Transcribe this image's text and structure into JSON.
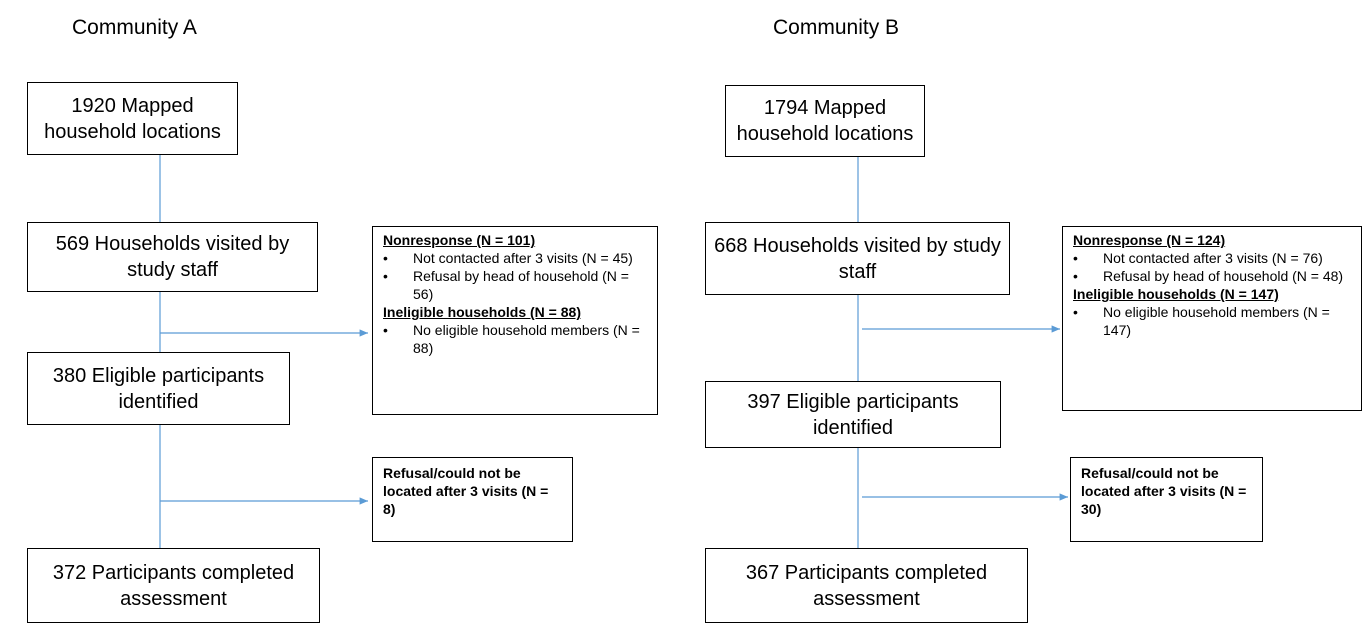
{
  "communities": [
    {
      "title": "Community A",
      "boxes": [
        "1920 Mapped household locations",
        "569 Households visited by study staff",
        "380 Eligible participants identified",
        "372 Participants completed assessment"
      ],
      "nonresponse": {
        "header": "Nonresponse (N = 101)",
        "items": [
          "Not contacted after 3 visits (N = 45)",
          "Refusal by head of household (N = 56)"
        ]
      },
      "ineligible": {
        "header": "Ineligible households (N = 88)",
        "items": [
          "No eligible household members (N = 88)"
        ]
      },
      "refusal": "Refusal/could not be located after 3 visits (N = 8)"
    },
    {
      "title": "Community B",
      "boxes": [
        "1794 Mapped household locations",
        "668 Households visited by study staff",
        "397 Eligible participants identified",
        "367 Participants completed assessment"
      ],
      "nonresponse": {
        "header": "Nonresponse (N = 124)",
        "items": [
          "Not contacted after 3 visits (N = 76)",
          "Refusal by head of household (N = 48)"
        ]
      },
      "ineligible": {
        "header": "Ineligible households (N = 147)",
        "items": [
          "No eligible household members (N = 147)"
        ]
      },
      "refusal": "Refusal/could not be located after 3 visits (N = 30)"
    }
  ]
}
